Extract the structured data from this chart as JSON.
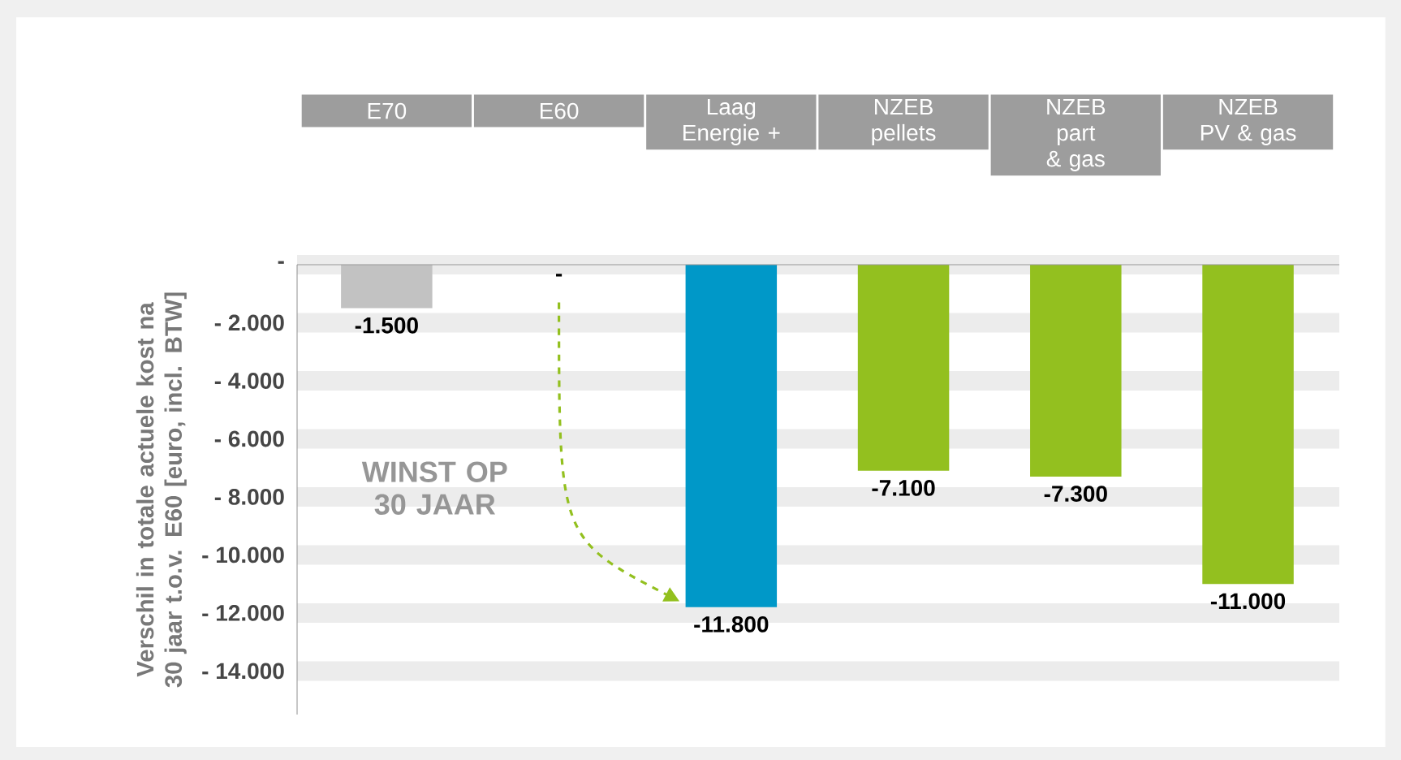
{
  "chart_data": {
    "type": "bar",
    "ylabel": "Verschil in totale actuele kost na 30 jaar t.o.v. E60 [euro, incl. BTW]",
    "categories": [
      "E70",
      "E60",
      "Laag Energie +",
      "NZEB pellets",
      "NZEB part & gas",
      "NZEB PV & gas"
    ],
    "values": [
      -1500,
      0,
      -11800,
      -7100,
      -7300,
      -11000
    ],
    "colors": [
      "#c2c2c2",
      "#c2c2c2",
      "#0098c8",
      "#93c01f",
      "#93c01f",
      "#93c01f"
    ],
    "value_labels": [
      "-1.500",
      "-",
      "-11.800",
      "-7.100",
      "-7.300",
      "-11.000"
    ],
    "ylim": [
      -15500,
      0
    ],
    "yticks": [
      {
        "value": 0,
        "label": "-"
      },
      {
        "value": -2000,
        "label": "- 2.000"
      },
      {
        "value": -4000,
        "label": "- 4.000"
      },
      {
        "value": -6000,
        "label": "- 6.000"
      },
      {
        "value": -8000,
        "label": "- 8.000"
      },
      {
        "value": -10000,
        "label": "- 10.000"
      },
      {
        "value": -12000,
        "label": "- 12.000"
      },
      {
        "value": -14000,
        "label": "- 14.000"
      }
    ],
    "grid": "y",
    "annotations": [
      "WINST OP 30 JAAR"
    ]
  }
}
